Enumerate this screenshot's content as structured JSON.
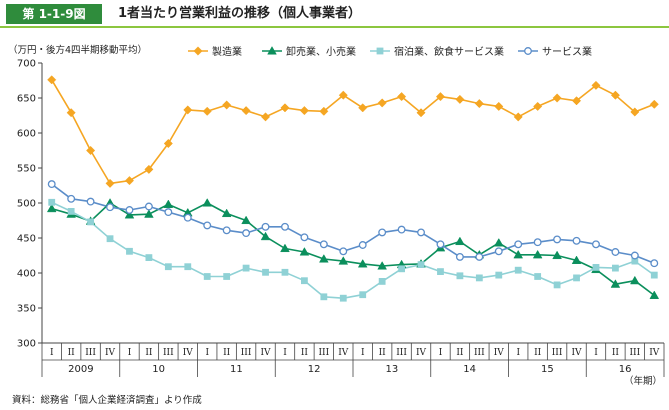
{
  "figure": {
    "number": "第 1-1-9図",
    "title": "1者当たり営業利益の推移（個人事業者）",
    "source": "資料：総務省「個人企業経済調査」より作成"
  },
  "chart_data": {
    "type": "line",
    "unit_label": "（万円・後方4四半期移動平均）",
    "xlabel": "（年期）",
    "ylim": [
      300,
      700
    ],
    "yticks": [
      300,
      350,
      400,
      450,
      500,
      550,
      600,
      650,
      700
    ],
    "grid": false,
    "legend_position": "top",
    "quarters": [
      "I",
      "II",
      "III",
      "IV",
      "I",
      "II",
      "III",
      "IV",
      "I",
      "II",
      "III",
      "IV",
      "I",
      "II",
      "III",
      "IV",
      "I",
      "II",
      "III",
      "IV",
      "I",
      "II",
      "III",
      "IV",
      "I",
      "II",
      "III",
      "IV",
      "I",
      "II",
      "III",
      "IV"
    ],
    "years": [
      "2009",
      "10",
      "11",
      "12",
      "13",
      "14",
      "15",
      "16"
    ],
    "series": [
      {
        "name": "製造業",
        "color": "#f5a623",
        "marker": "diamond",
        "values": [
          676,
          629,
          575,
          528,
          532,
          548,
          585,
          633,
          631,
          640,
          632,
          623,
          636,
          632,
          631,
          654,
          636,
          643,
          652,
          629,
          652,
          648,
          642,
          638,
          623,
          638,
          650,
          646,
          668,
          654,
          630,
          641
        ]
      },
      {
        "name": "卸売業、小売業",
        "color": "#0b8f5c",
        "marker": "triangle",
        "values": [
          492,
          484,
          474,
          500,
          483,
          484,
          498,
          486,
          500,
          485,
          475,
          452,
          435,
          430,
          420,
          417,
          413,
          410,
          412,
          413,
          436,
          445,
          426,
          443,
          426,
          426,
          425,
          418,
          405,
          384,
          389,
          368
        ]
      },
      {
        "name": "宿泊業、飲食サービス業",
        "color": "#8fd1d5",
        "marker": "square",
        "values": [
          501,
          488,
          473,
          449,
          431,
          422,
          409,
          409,
          395,
          395,
          407,
          401,
          401,
          389,
          366,
          364,
          369,
          388,
          406,
          412,
          402,
          396,
          393,
          397,
          404,
          395,
          383,
          393,
          408,
          407,
          417,
          397
        ]
      },
      {
        "name": "サービス業",
        "color": "#5b8dc9",
        "marker": "circle",
        "values": [
          527,
          506,
          502,
          494,
          490,
          495,
          487,
          479,
          468,
          461,
          457,
          466,
          466,
          451,
          441,
          431,
          440,
          458,
          462,
          458,
          441,
          423,
          423,
          431,
          441,
          444,
          448,
          446,
          441,
          430,
          425,
          414
        ]
      }
    ]
  }
}
